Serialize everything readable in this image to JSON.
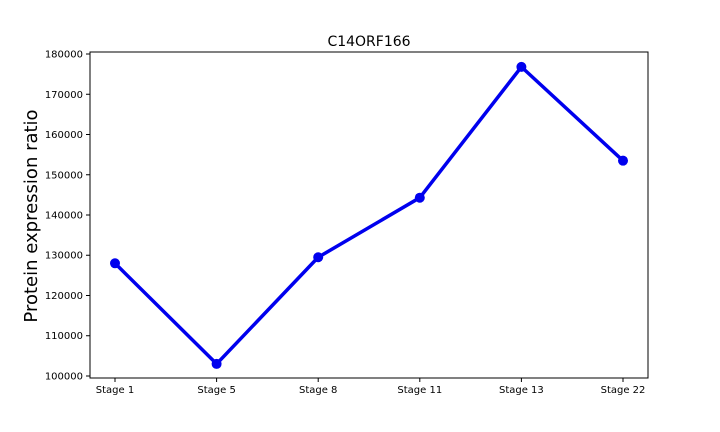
{
  "chart_data": {
    "type": "line",
    "title": "C14ORF166",
    "xlabel": "",
    "ylabel": "Protein expression ratio",
    "categories": [
      "Stage 1",
      "Stage 5",
      "Stage 8",
      "Stage 11",
      "Stage 13",
      "Stage 22"
    ],
    "series": [
      {
        "values": [
          128000,
          103000,
          129500,
          144300,
          176800,
          153500
        ],
        "color": "#0000ee"
      }
    ],
    "yticks": [
      100000,
      110000,
      120000,
      130000,
      140000,
      150000,
      160000,
      170000,
      180000
    ],
    "ylim": [
      99500,
      180500
    ],
    "grid": false,
    "legend": "none"
  }
}
